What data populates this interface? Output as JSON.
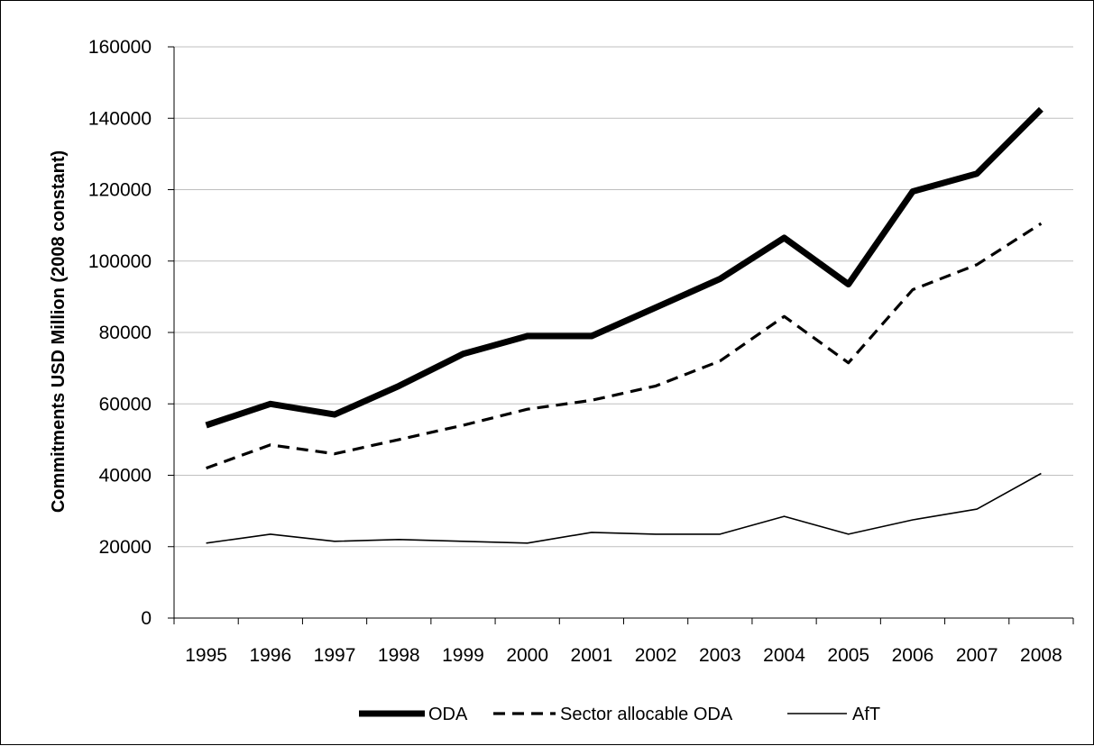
{
  "chart_data": {
    "type": "line",
    "ylabel": "Commitments USD Million (2008 constant)",
    "xlabel": "",
    "title": "",
    "x": [
      "1995",
      "1996",
      "1997",
      "1998",
      "1999",
      "2000",
      "2001",
      "2002",
      "2003",
      "2004",
      "2005",
      "2006",
      "2007",
      "2008"
    ],
    "ylim": [
      0,
      160000
    ],
    "yticks": [
      0,
      20000,
      40000,
      60000,
      80000,
      100000,
      120000,
      140000,
      160000
    ],
    "grid": "horizontal",
    "legend_position": "bottom-center",
    "series": [
      {
        "name": "ODA",
        "style": "solid-thick",
        "color": "#000000",
        "values": [
          54000,
          60000,
          57000,
          65000,
          74000,
          79000,
          79000,
          87000,
          95000,
          106500,
          93500,
          119500,
          124500,
          142500
        ]
      },
      {
        "name": "Sector allocable ODA",
        "style": "dashed",
        "color": "#000000",
        "values": [
          42000,
          48500,
          46000,
          50000,
          54000,
          58500,
          61000,
          65000,
          72000,
          84500,
          71500,
          92000,
          99000,
          110500
        ]
      },
      {
        "name": "AfT",
        "style": "solid-thin",
        "color": "#000000",
        "values": [
          21000,
          23500,
          21500,
          22000,
          21500,
          21000,
          24000,
          23500,
          23500,
          28500,
          23500,
          27500,
          30500,
          40500
        ]
      }
    ]
  }
}
